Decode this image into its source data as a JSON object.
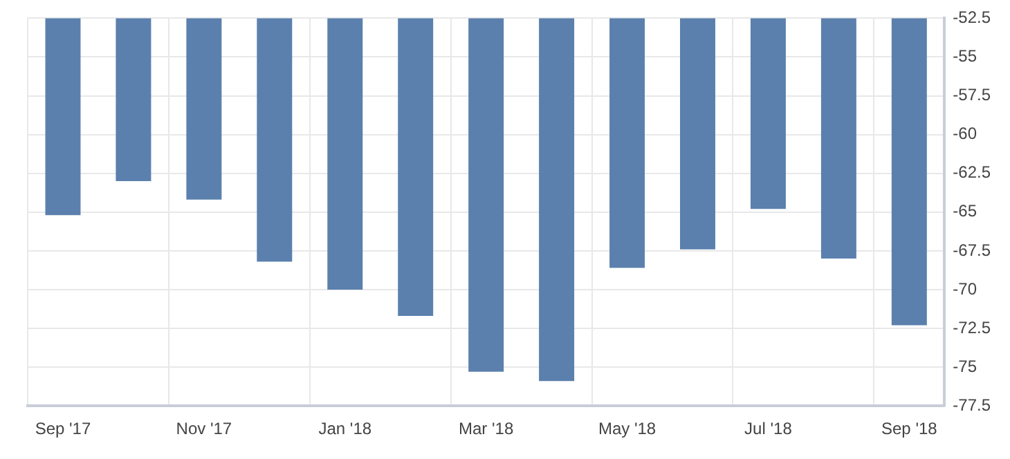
{
  "chart_data": {
    "type": "bar",
    "categories": [
      "Sep '17",
      null,
      "Nov '17",
      null,
      "Jan '18",
      null,
      "Mar '18",
      null,
      "May '18",
      null,
      "Jul '18",
      null,
      "Sep '18"
    ],
    "values": [
      -65.2,
      -63.0,
      -64.2,
      -68.2,
      -70.0,
      -71.7,
      -75.3,
      -75.9,
      -68.6,
      -67.4,
      -64.8,
      -68.0,
      -72.3
    ],
    "color": "#5b80ad",
    "ylim": [
      -77.5,
      -52.5
    ],
    "yticks": [
      -52.5,
      -55,
      -57.5,
      -60,
      -62.5,
      -65,
      -67.5,
      -70,
      -72.5,
      -75,
      -77.5
    ],
    "grid": true
  }
}
